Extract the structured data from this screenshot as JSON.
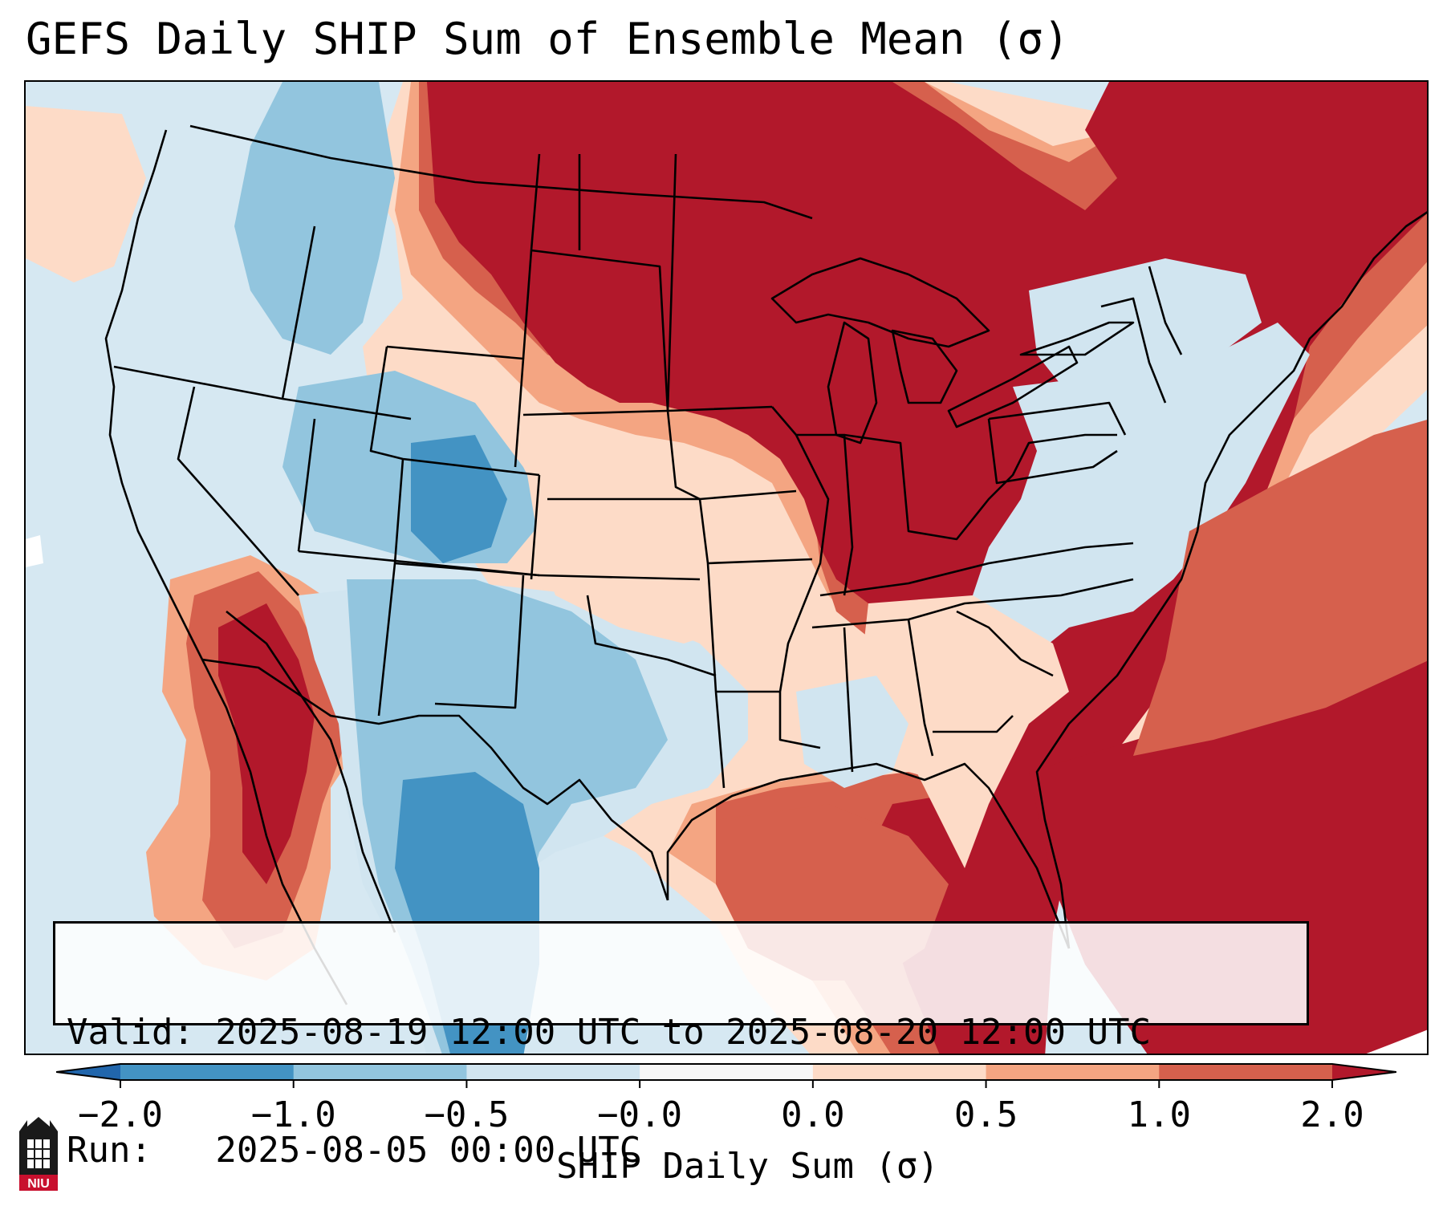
{
  "title": "GEFS Daily SHIP Sum of Ensemble Mean (σ)",
  "info_box": {
    "valid_line": "Valid: 2025-08-19 12:00 UTC to 2025-08-20 12:00 UTC",
    "run_line": "Run:   2025-08-05 00:00 UTC"
  },
  "colorbar": {
    "label": "SHIP Daily Sum (σ)",
    "extend": "both",
    "tick_labels": [
      "−2.0",
      "−1.0",
      "−0.5",
      "−0.0",
      "0.0",
      "0.5",
      "1.0",
      "2.0"
    ],
    "bins": [
      {
        "range": "<-2.0",
        "color": "#2166ac"
      },
      {
        "range": "-2.0 to -1.0",
        "color": "#4393c3"
      },
      {
        "range": "-1.0 to -0.5",
        "color": "#92c5de"
      },
      {
        "range": "-0.5 to -0.0",
        "color": "#d1e5f0"
      },
      {
        "range": "-0.0 to 0.0",
        "color": "#f7f7f7"
      },
      {
        "range": "0.0 to 0.5",
        "color": "#fddbc7"
      },
      {
        "range": "0.5 to 1.0",
        "color": "#f4a582"
      },
      {
        "range": "1.0 to 2.0",
        "color": "#d6604d"
      },
      {
        "range": ">2.0",
        "color": "#b2182b"
      }
    ]
  },
  "logo": {
    "text": "NIU",
    "colors": {
      "red": "#c8102e",
      "black": "#1a1a1a"
    }
  },
  "map_regions": [
    {
      "region": "Northern Plains / Upper Midwest",
      "level": ">2.0"
    },
    {
      "region": "Gulf of Mexico / Florida / Atlantic",
      "level": "1.0 to >2.0"
    },
    {
      "region": "Southwest / Baja",
      "level": "1.0 to >2.0"
    },
    {
      "region": "Texas / New Mexico",
      "level": "-2.0 to -0.5"
    },
    {
      "region": "Northwest / Great Basin",
      "level": "-1.0 to -0.0"
    },
    {
      "region": "Mid-Atlantic / Northeast interior",
      "level": "-0.5 to -0.0"
    }
  ]
}
